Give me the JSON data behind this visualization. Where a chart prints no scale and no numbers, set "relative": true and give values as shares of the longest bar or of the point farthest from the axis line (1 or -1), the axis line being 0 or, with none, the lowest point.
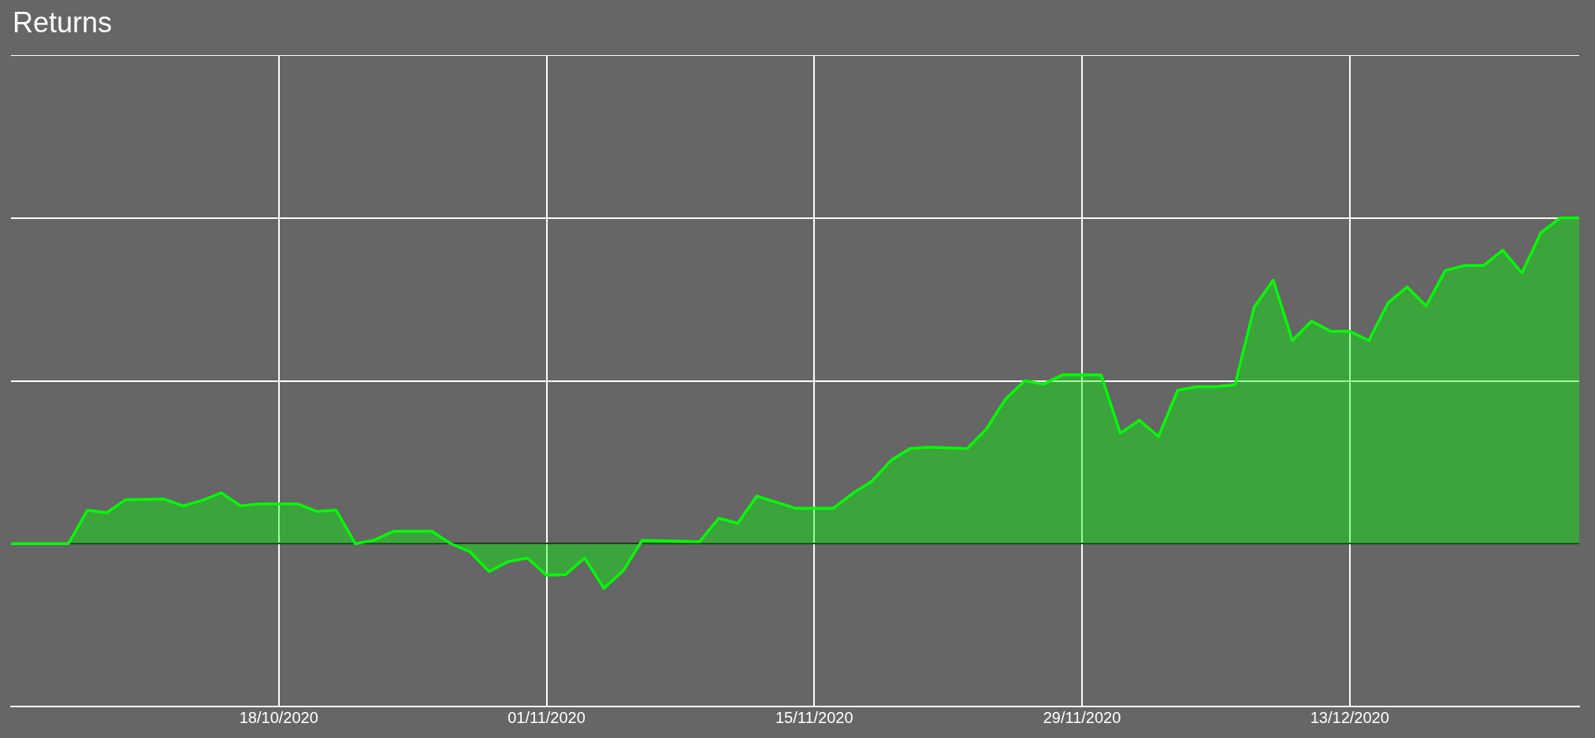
{
  "chart_data": {
    "type": "area",
    "title": "Returns",
    "relative": true,
    "grid": true,
    "legend": false,
    "xlim": [
      "2020-10-04",
      "2020-12-25"
    ],
    "xticks": [
      {
        "value": "2020-10-18",
        "label": "18/10/2020"
      },
      {
        "value": "2020-11-01",
        "label": "01/11/2020"
      },
      {
        "value": "2020-11-15",
        "label": "15/11/2020"
      },
      {
        "value": "2020-11-29",
        "label": "29/11/2020"
      },
      {
        "value": "2020-12-13",
        "label": "13/12/2020"
      }
    ],
    "x": [
      "2020-10-04",
      "2020-10-07",
      "2020-10-08",
      "2020-10-09",
      "2020-10-10",
      "2020-10-12",
      "2020-10-13",
      "2020-10-14",
      "2020-10-15",
      "2020-10-16",
      "2020-10-17",
      "2020-10-19",
      "2020-10-20",
      "2020-10-21",
      "2020-10-22",
      "2020-10-23",
      "2020-10-24",
      "2020-10-26",
      "2020-10-27",
      "2020-10-28",
      "2020-10-29",
      "2020-10-30",
      "2020-10-31",
      "2020-11-01",
      "2020-11-02",
      "2020-11-03",
      "2020-11-04",
      "2020-11-05",
      "2020-11-06",
      "2020-11-09",
      "2020-11-10",
      "2020-11-11",
      "2020-11-12",
      "2020-11-14",
      "2020-11-16",
      "2020-11-17",
      "2020-11-18",
      "2020-11-19",
      "2020-11-20",
      "2020-11-21",
      "2020-11-23",
      "2020-11-24",
      "2020-11-25",
      "2020-11-26",
      "2020-11-27",
      "2020-11-28",
      "2020-11-30",
      "2020-12-01",
      "2020-12-02",
      "2020-12-03",
      "2020-12-04",
      "2020-12-05",
      "2020-12-06",
      "2020-12-07",
      "2020-12-08",
      "2020-12-09",
      "2020-12-10",
      "2020-12-11",
      "2020-12-12",
      "2020-12-13",
      "2020-12-14",
      "2020-12-15",
      "2020-12-16",
      "2020-12-17",
      "2020-12-18",
      "2020-12-19",
      "2020-12-20",
      "2020-12-21",
      "2020-12-22",
      "2020-12-23",
      "2020-12-24",
      "2020-12-25"
    ],
    "series": [
      {
        "color": "#00ff00",
        "values": [
          0,
          0,
          0.103,
          0.095,
          0.135,
          0.137,
          0.116,
          0.133,
          0.156,
          0.116,
          0.122,
          0.122,
          0.099,
          0.103,
          0,
          0.011,
          0.038,
          0.038,
          0,
          -0.025,
          -0.086,
          -0.055,
          -0.044,
          -0.097,
          -0.095,
          -0.044,
          -0.137,
          -0.084,
          0.01,
          0.006,
          0.078,
          0.063,
          0.146,
          0.109,
          0.109,
          0.154,
          0.191,
          0.255,
          0.292,
          0.296,
          0.292,
          0.352,
          0.444,
          0.5,
          0.49,
          0.519,
          0.518,
          0.339,
          0.379,
          0.329,
          0.471,
          0.482,
          0.482,
          0.488,
          0.726,
          0.809,
          0.624,
          0.683,
          0.652,
          0.652,
          0.624,
          0.739,
          0.788,
          0.73,
          0.839,
          0.854,
          0.854,
          0.901,
          0.831,
          0.955,
          1.0,
          1.0
        ]
      }
    ]
  }
}
